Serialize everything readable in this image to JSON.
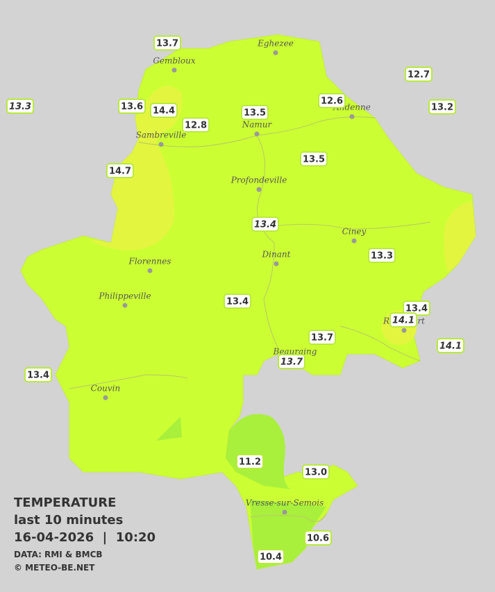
{
  "legend": {
    "title": "TEMPERATURE",
    "period": "last 10 minutes",
    "datetime": "16-04-2026  |  10:20",
    "source": "DATA: RMI & BMCB",
    "credit": "© METEO-BE.NET"
  },
  "cities": [
    "Eghezee",
    "Gembloux",
    "Andenne",
    "Namur",
    "Sambreville",
    "Profondeville",
    "Ciney",
    "Dinant",
    "Florennes",
    "Philippeville",
    "Rochefort",
    "Beauraing",
    "Couvin",
    "Vresse-sur-Semois"
  ],
  "stations": [
    {
      "label": "13.7",
      "italic": false
    },
    {
      "label": "13.3",
      "italic": true
    },
    {
      "label": "13.6",
      "italic": false
    },
    {
      "label": "14.4",
      "italic": false
    },
    {
      "label": "12.8",
      "italic": false
    },
    {
      "label": "13.5",
      "italic": false
    },
    {
      "label": "12.6",
      "italic": false
    },
    {
      "label": "12.7",
      "italic": false
    },
    {
      "label": "13.2",
      "italic": false
    },
    {
      "label": "14.7",
      "italic": false
    },
    {
      "label": "13.5",
      "italic": false
    },
    {
      "label": "13.4",
      "italic": true
    },
    {
      "label": "13.3",
      "italic": false
    },
    {
      "label": "13.4",
      "italic": false
    },
    {
      "label": "13.4",
      "italic": false
    },
    {
      "label": "14.1",
      "italic": true
    },
    {
      "label": "13.7",
      "italic": false
    },
    {
      "label": "13.7",
      "italic": true
    },
    {
      "label": "14.1",
      "italic": true
    },
    {
      "label": "13.4",
      "italic": false
    },
    {
      "label": "11.2",
      "italic": false
    },
    {
      "label": "13.0",
      "italic": false
    },
    {
      "label": "10.6",
      "italic": false
    },
    {
      "label": "10.4",
      "italic": false
    }
  ]
}
